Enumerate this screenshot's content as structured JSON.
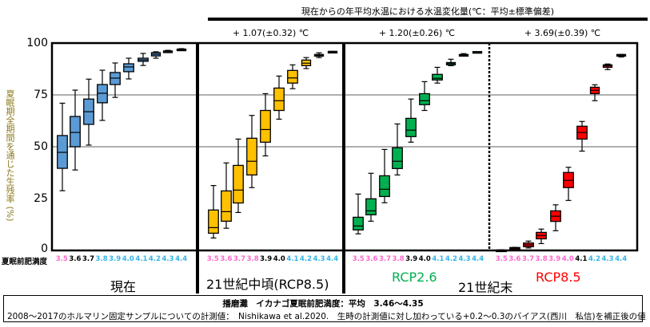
{
  "header": {
    "title": "現在からの年平均水温における水温変化量(℃：平均±標準偏差)",
    "temperature_changes": [
      "+ 1.07(±0.32) ℃",
      "+ 1.20(±0.26) ℃",
      "+ 3.69(±0.39) ℃"
    ]
  },
  "axis": {
    "ylabel": "夏眠期全期間を通じた生残率 (%)",
    "yticks": [
      "100",
      "75",
      "50",
      "25",
      "0"
    ],
    "xlabel_title": "夏眠前肥満度"
  },
  "periods": {
    "present": "現在",
    "mid_century": "21世紀中頃(RCP8.5)",
    "end_century": "21世紀末",
    "rcp26": "RCP2.6",
    "rcp85": "RCP8.5"
  },
  "footer": {
    "line1": "播磨灘　イカナゴ夏眠前肥満度：平均　3.46～4.35",
    "line2": "2008～2017のホルマリン固定サンプルについての計測値：　Nishikawa et al.2020.　生時の計測値に対し加わっている+0.2～0.3のバイアス(西川　私信)を補正後の値"
  },
  "colors": {
    "present": "#5b9bd5",
    "mid_century": "#ffc000",
    "rcp26": "#00b050",
    "rcp85": "#ff0000",
    "tick_pink": "#ff66cc",
    "tick_black": "#000000",
    "tick_blue": "#33b5e5",
    "rcp26_text": "#00b050",
    "rcp85_text": "#ff0000",
    "ylabel": "#8a7a1e",
    "gridline": "#808080"
  },
  "chart_data": {
    "type": "box",
    "title": "現在からの年平均水温における水温変化量(℃：平均±標準偏差)",
    "xlabel": "夏眠前肥満度",
    "ylabel": "夏眠期全期間を通じた生残率 (%)",
    "ylim": [
      0,
      100
    ],
    "yticks": [
      0,
      25,
      50,
      75,
      100
    ],
    "grid": "horizontal at 50 and 75",
    "categories": [
      "3.5",
      "3.6",
      "3.7",
      "3.8",
      "3.9",
      "4.0",
      "4.1",
      "4.2",
      "4.3",
      "4.4"
    ],
    "series": [
      {
        "name": "現在",
        "temp_change": "",
        "color": "#5b9bd5",
        "tick_colors": [
          "pink",
          "black",
          "black",
          "blue",
          "blue",
          "blue",
          "blue",
          "blue",
          "blue",
          "blue"
        ],
        "boxes": [
          {
            "low": 28.8,
            "q1": 39.6,
            "median": 47.3,
            "q3": 55.4,
            "high": 71.0
          },
          {
            "low": 38.8,
            "q1": 50.0,
            "median": 56.9,
            "q3": 64.6,
            "high": 77.3
          },
          {
            "low": 50.8,
            "q1": 60.8,
            "median": 66.9,
            "q3": 73.0,
            "high": 82.6
          },
          {
            "low": 62.7,
            "q1": 71.2,
            "median": 75.8,
            "q3": 80.0,
            "high": 86.9
          },
          {
            "low": 73.8,
            "q1": 80.0,
            "median": 83.1,
            "q3": 85.8,
            "high": 90.4
          },
          {
            "low": 82.7,
            "q1": 86.2,
            "median": 88.5,
            "q3": 90.0,
            "high": 92.7
          },
          {
            "low": 89.2,
            "q1": 91.2,
            "median": 91.9,
            "q3": 92.7,
            "high": 95.0
          },
          {
            "low": 92.7,
            "q1": 93.8,
            "median": 94.6,
            "q3": 95.4,
            "high": 95.8
          },
          {
            "low": 95.4,
            "q1": 95.4,
            "median": 95.9,
            "q3": 96.2,
            "high": 96.5
          },
          {
            "low": 96.7,
            "q1": 96.9,
            "median": 97.0,
            "q3": 97.1,
            "high": 97.3
          }
        ]
      },
      {
        "name": "21世紀中頃(RCP8.5)",
        "temp_change": "+ 1.07(±0.32) ℃",
        "color": "#ffc000",
        "tick_colors": [
          "pink",
          "pink",
          "pink",
          "pink",
          "black",
          "black",
          "blue",
          "blue",
          "blue",
          "blue"
        ],
        "boxes": [
          {
            "low": 6.0,
            "q1": 8.3,
            "median": 11.0,
            "q3": 19.5,
            "high": 31.3
          },
          {
            "low": 10.7,
            "q1": 14.1,
            "median": 18.7,
            "q3": 28.7,
            "high": 42.2
          },
          {
            "low": 18.3,
            "q1": 22.9,
            "median": 29.1,
            "q3": 41.0,
            "high": 53.7
          },
          {
            "low": 30.3,
            "q1": 36.4,
            "median": 43.0,
            "q3": 54.1,
            "high": 65.1
          },
          {
            "low": 45.6,
            "q1": 52.2,
            "median": 58.3,
            "q3": 67.5,
            "high": 75.6
          },
          {
            "low": 63.3,
            "q1": 67.5,
            "median": 72.2,
            "q3": 78.3,
            "high": 84.1
          },
          {
            "low": 78.0,
            "q1": 80.7,
            "median": 83.2,
            "q3": 86.8,
            "high": 89.5
          },
          {
            "low": 87.7,
            "q1": 89.1,
            "median": 90.3,
            "q3": 91.8,
            "high": 93.0
          },
          {
            "low": 93.0,
            "q1": 93.7,
            "median": 94.1,
            "q3": 94.5,
            "high": 95.3
          },
          {
            "low": 95.3,
            "q1": 95.3,
            "median": 95.7,
            "q3": 96.0,
            "high": 96.0
          }
        ]
      },
      {
        "name": "21世紀末 RCP2.6",
        "temp_change": "+ 1.20(±0.26) ℃",
        "color": "#00b050",
        "tick_colors": [
          "pink",
          "pink",
          "pink",
          "pink",
          "black",
          "black",
          "blue",
          "blue",
          "blue",
          "blue"
        ],
        "boxes": [
          {
            "low": 8.0,
            "q1": 9.9,
            "median": 11.8,
            "q3": 16.0,
            "high": 27.2
          },
          {
            "low": 14.1,
            "q1": 17.2,
            "median": 19.1,
            "q3": 24.9,
            "high": 37.2
          },
          {
            "low": 23.0,
            "q1": 26.0,
            "median": 29.5,
            "q3": 36.0,
            "high": 48.7
          },
          {
            "low": 36.4,
            "q1": 39.5,
            "median": 43.0,
            "q3": 49.5,
            "high": 61.0
          },
          {
            "low": 52.2,
            "q1": 54.9,
            "median": 58.0,
            "q3": 63.7,
            "high": 73.0
          },
          {
            "low": 67.5,
            "q1": 70.3,
            "median": 72.2,
            "q3": 75.6,
            "high": 81.4
          },
          {
            "low": 80.7,
            "q1": 82.2,
            "median": 83.0,
            "q3": 84.9,
            "high": 88.3
          },
          {
            "low": 89.1,
            "q1": 89.5,
            "median": 90.1,
            "q3": 90.6,
            "high": 92.2
          },
          {
            "low": 93.7,
            "q1": 93.7,
            "median": 94.1,
            "q3": 94.5,
            "high": 94.9
          },
          {
            "low": 95.5,
            "q1": 95.5,
            "median": 95.7,
            "q3": 95.9,
            "high": 95.9
          }
        ]
      },
      {
        "name": "21世紀末 RCP8.5",
        "temp_change": "+ 3.69(±0.39) ℃",
        "color": "#ff0000",
        "tick_colors": [
          "pink",
          "pink",
          "pink",
          "pink",
          "pink",
          "pink",
          "black",
          "blue",
          "blue",
          "blue"
        ],
        "boxes": [
          {
            "low": 0.0,
            "q1": 0.0,
            "median": 0.1,
            "q3": 0.2,
            "high": 0.3
          },
          {
            "low": 0.0,
            "q1": 0.4,
            "median": 0.9,
            "q3": 1.4,
            "high": 1.5
          },
          {
            "low": 1.2,
            "q1": 1.8,
            "median": 2.7,
            "q3": 3.6,
            "high": 4.5
          },
          {
            "low": 3.3,
            "q1": 5.6,
            "median": 7.2,
            "q3": 8.7,
            "high": 10.3
          },
          {
            "low": 9.5,
            "q1": 14.0,
            "median": 16.5,
            "q3": 19.1,
            "high": 22.0
          },
          {
            "low": 24.1,
            "q1": 30.3,
            "median": 33.8,
            "q3": 37.6,
            "high": 40.1
          },
          {
            "low": 47.9,
            "q1": 53.7,
            "median": 56.9,
            "q3": 59.9,
            "high": 62.2
          },
          {
            "low": 72.2,
            "q1": 75.6,
            "median": 77.2,
            "q3": 78.7,
            "high": 79.9
          },
          {
            "low": 87.2,
            "q1": 88.3,
            "median": 89.0,
            "q3": 89.5,
            "high": 89.9
          },
          {
            "low": 93.3,
            "q1": 93.7,
            "median": 94.1,
            "q3": 94.5,
            "high": 94.5
          }
        ]
      }
    ]
  }
}
